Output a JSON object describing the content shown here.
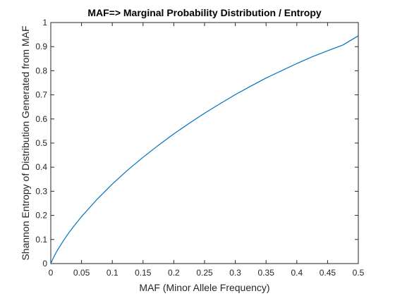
{
  "chart_data": {
    "type": "line",
    "title": "MAF=> Marginal Probability Distribution / Entropy",
    "xlabel": "MAF (Minor Allele Frequency)",
    "ylabel": "Shannon Entropy of Distribution Generated from MAF",
    "xlim": [
      0,
      0.5
    ],
    "ylim": [
      0,
      1
    ],
    "xticks": [
      0,
      0.05,
      0.1,
      0.15,
      0.2,
      0.25,
      0.3,
      0.35,
      0.4,
      0.45,
      0.5
    ],
    "xtick_labels": [
      "0",
      "0.05",
      "0.1",
      "0.15",
      "0.2",
      "0.25",
      "0.3",
      "0.35",
      "0.4",
      "0.45",
      "0.5"
    ],
    "yticks": [
      0,
      0.1,
      0.2,
      0.3,
      0.4,
      0.5,
      0.6,
      0.7,
      0.8,
      0.9,
      1
    ],
    "ytick_labels": [
      "0",
      "0.1",
      "0.2",
      "0.3",
      "0.4",
      "0.5",
      "0.6",
      "0.7",
      "0.8",
      "0.9",
      "1"
    ],
    "grid": false,
    "line_color": "#0072BD",
    "series": [
      {
        "x": [
          0,
          0.005,
          0.01,
          0.02,
          0.03,
          0.04,
          0.05,
          0.075,
          0.1,
          0.125,
          0.15,
          0.175,
          0.2,
          0.225,
          0.25,
          0.275,
          0.3,
          0.325,
          0.35,
          0.375,
          0.4,
          0.425,
          0.45,
          0.475,
          0.5
        ],
        "values": [
          0,
          0.028,
          0.052,
          0.093,
          0.13,
          0.163,
          0.195,
          0.266,
          0.33,
          0.388,
          0.441,
          0.491,
          0.538,
          0.582,
          0.624,
          0.663,
          0.701,
          0.736,
          0.77,
          0.8,
          0.83,
          0.858,
          0.883,
          0.907,
          0.945
        ]
      }
    ]
  }
}
